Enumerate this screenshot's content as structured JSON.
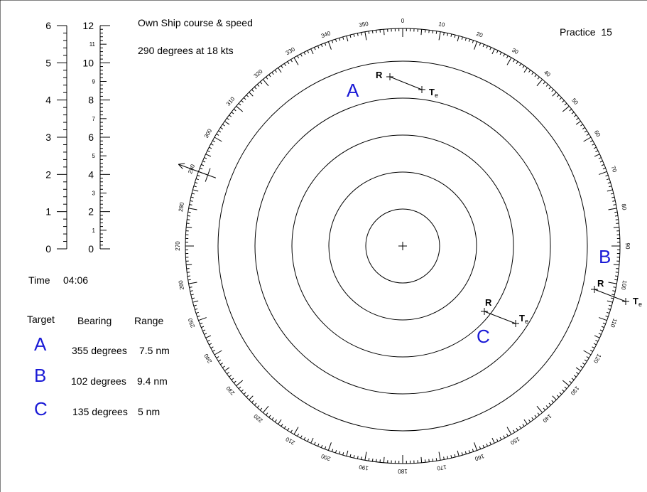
{
  "header": {
    "own_ship_title": "Own Ship course & speed",
    "own_ship_value": "290 degrees at 18 kts",
    "practice_label": "Practice",
    "practice_number": "15"
  },
  "scales": {
    "left": {
      "labels": [
        "0",
        "1",
        "2",
        "3",
        "4",
        "5",
        "6"
      ],
      "max": 6
    },
    "right": {
      "labels": [
        "0",
        "2",
        "4",
        "6",
        "8",
        "10",
        "12"
      ],
      "minor_labels": [
        "1",
        "3",
        "5",
        "7",
        "9",
        "11"
      ],
      "max": 12
    }
  },
  "time": {
    "label": "Time",
    "value": "04:06"
  },
  "table": {
    "headers": {
      "target": "Target",
      "bearing": "Bearing",
      "range": "Range"
    },
    "rows": [
      {
        "target": "A",
        "bearing": "355 degrees",
        "range": "7.5 nm"
      },
      {
        "target": "B",
        "bearing": "102 degrees",
        "range": "9.4 nm"
      },
      {
        "target": "C",
        "bearing": "135 degrees",
        "range": "5 nm"
      }
    ]
  },
  "plot": {
    "compass_labels": [
      "0",
      "10",
      "20",
      "30",
      "40",
      "50",
      "60",
      "70",
      "80",
      "90",
      "100",
      "110",
      "120",
      "130",
      "140",
      "150",
      "160",
      "170",
      "180",
      "190",
      "200",
      "210",
      "220",
      "230",
      "240",
      "250",
      "260",
      "270",
      "280",
      "290",
      "300",
      "310",
      "320",
      "330",
      "340",
      "350"
    ],
    "rings": 5,
    "own_course_deg": 290,
    "targets": [
      {
        "name": "A",
        "r_label": "R",
        "te_label": "Te"
      },
      {
        "name": "B",
        "r_label": "R",
        "te_label": "Te"
      },
      {
        "name": "C",
        "r_label": "R",
        "te_label": "Te"
      }
    ]
  },
  "colors": {
    "target_letter": "#1a1ad6",
    "ink": "#000000"
  }
}
